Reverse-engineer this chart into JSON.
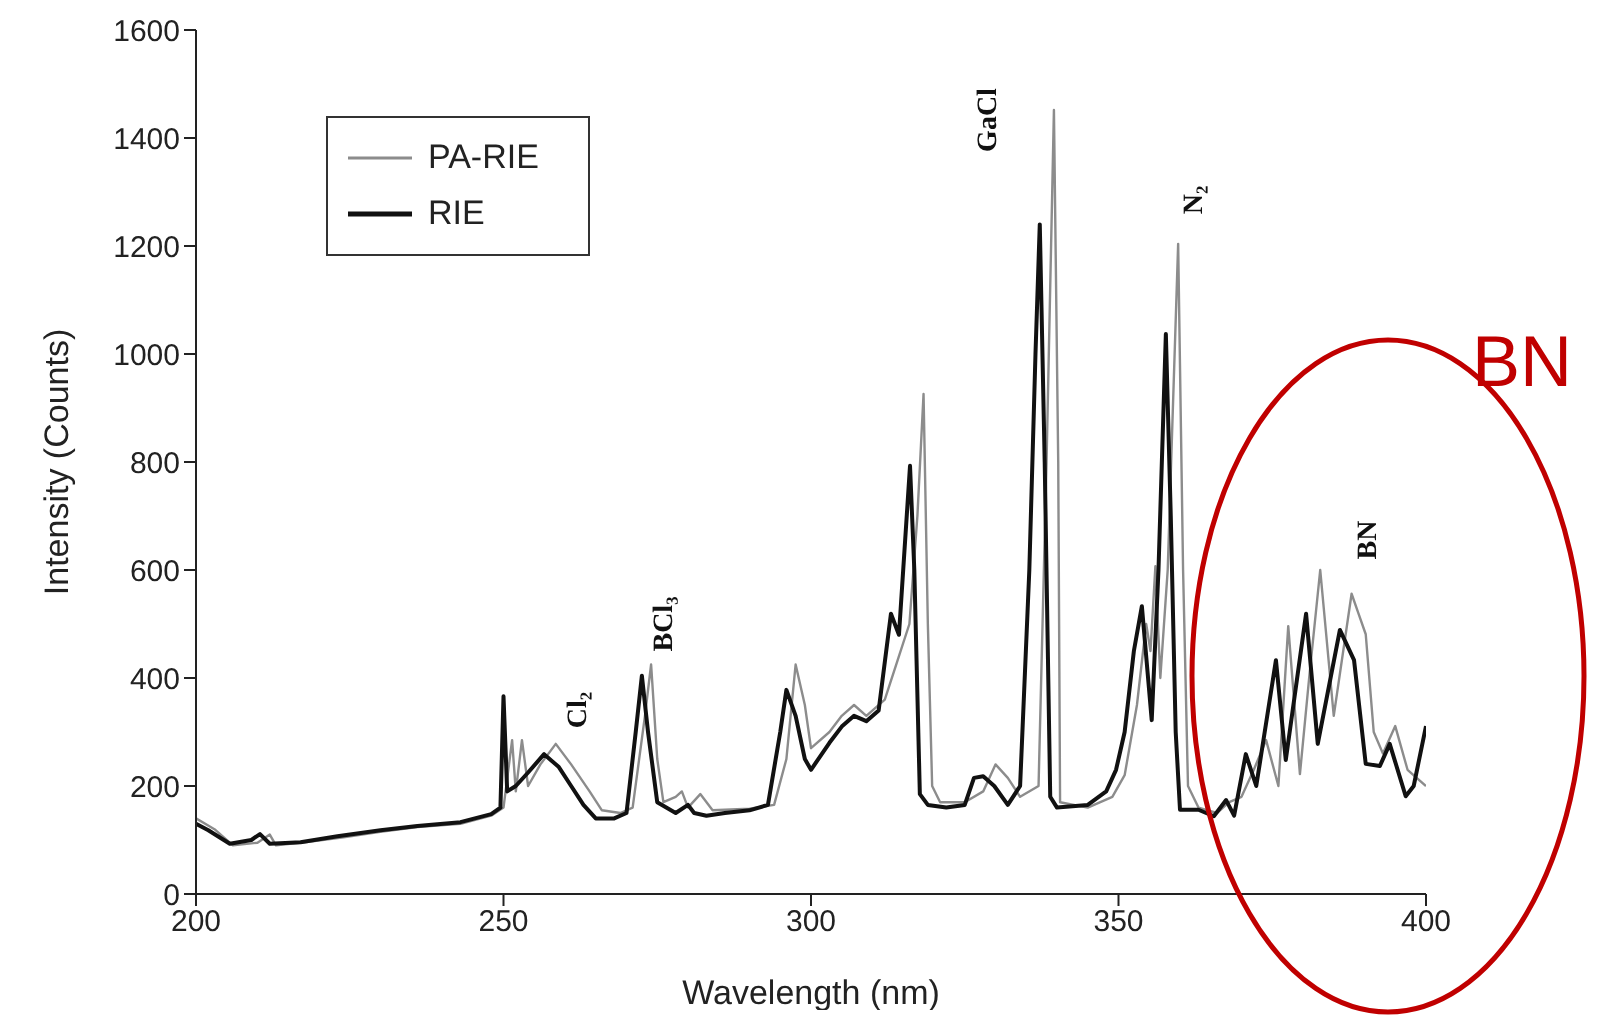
{
  "chart_data": {
    "type": "line",
    "xlabel": "Wavelength (nm)",
    "ylabel": "Intensity (Counts)",
    "xlim": [
      200,
      400
    ],
    "xticks": [
      200,
      250,
      300,
      350,
      400
    ],
    "ylim": [
      0,
      1600
    ],
    "yticks": [
      0,
      200,
      400,
      600,
      800,
      1000,
      1200,
      1400,
      1600
    ],
    "legend": "top left",
    "marker": "none",
    "line_style": "solid",
    "series": [
      {
        "name": "PA-RIE",
        "color": "#8c8c8c",
        "x": [
          200,
          203,
          206,
          210,
          212,
          213,
          218,
          224,
          230,
          236,
          243,
          248,
          250,
          251.4,
          252,
          253,
          254,
          256,
          258.5,
          261,
          264,
          266,
          269,
          271,
          273,
          274,
          275,
          276,
          278,
          279,
          280,
          282,
          284,
          290,
          294,
          296,
          297.5,
          299,
          300,
          303,
          305,
          307,
          309,
          312,
          314,
          316,
          317.3,
          318.3,
          319,
          319.7,
          321,
          325,
          328,
          330,
          332,
          334,
          337,
          338.3,
          339.5,
          340.2,
          340.5,
          345,
          349,
          351,
          353,
          354.5,
          355.2,
          356,
          356.8,
          358,
          359.7,
          360.5,
          361.3,
          363,
          366,
          368,
          370,
          372,
          374,
          376,
          377.6,
          379.5,
          381,
          382.8,
          385,
          387.9,
          389,
          390.2,
          391.5,
          393,
          395,
          397,
          400
        ],
        "values": [
          140,
          120,
          90,
          95,
          110,
          90,
          96,
          105,
          115,
          124,
          130,
          145,
          160,
          285,
          190,
          285,
          200,
          240,
          278,
          240,
          190,
          155,
          150,
          160,
          330,
          425,
          250,
          170,
          180,
          190,
          160,
          185,
          155,
          158,
          165,
          250,
          425,
          350,
          270,
          300,
          330,
          350,
          330,
          360,
          430,
          500,
          700,
          926,
          500,
          200,
          170,
          170,
          190,
          240,
          215,
          180,
          200,
          800,
          1452,
          800,
          170,
          160,
          180,
          220,
          350,
          500,
          450,
          607,
          400,
          600,
          1204,
          600,
          200,
          160,
          150,
          170,
          180,
          230,
          285,
          200,
          496,
          222,
          400,
          600,
          330,
          556,
          520,
          481,
          300,
          260,
          311,
          230,
          200
        ]
      },
      {
        "name": "RIE",
        "color": "#111111",
        "x": [
          200,
          202,
          205.5,
          209,
          210.4,
          212,
          217,
          223,
          230,
          236,
          243,
          248,
          249.5,
          250,
          250.6,
          252,
          254,
          256.6,
          259,
          261,
          263,
          265,
          268,
          270,
          271.5,
          272.5,
          273.5,
          275,
          278,
          280,
          281,
          283,
          286,
          290,
          293,
          295,
          296,
          297.5,
          299,
          300,
          303,
          305,
          307,
          309,
          311,
          313,
          314.3,
          316.1,
          316.8,
          317.7,
          319,
          322,
          325,
          326.5,
          328,
          329.8,
          332,
          334,
          335.5,
          336.5,
          337.2,
          338,
          338.9,
          340,
          345,
          348,
          349.6,
          351,
          352.5,
          353.8,
          355.4,
          356.5,
          357.7,
          358.5,
          359.3,
          360,
          363,
          365.5,
          367.5,
          368.8,
          370.7,
          372.4,
          375.6,
          377.2,
          380.5,
          382.4,
          386,
          388.3,
          390.2,
          392.5,
          394.1,
          396.7,
          398,
          400
        ],
        "values": [
          130,
          118,
          93,
          100,
          111,
          93,
          96,
          107,
          118,
          126,
          133,
          148,
          160,
          366,
          190,
          200,
          225,
          259,
          235,
          200,
          165,
          140,
          140,
          150,
          300,
          404,
          300,
          170,
          150,
          165,
          150,
          145,
          150,
          155,
          165,
          300,
          378,
          330,
          250,
          230,
          280,
          310,
          330,
          320,
          340,
          519,
          480,
          793,
          600,
          185,
          165,
          160,
          165,
          215,
          218,
          200,
          165,
          200,
          600,
          1000,
          1240,
          800,
          180,
          160,
          165,
          190,
          230,
          300,
          450,
          533,
          322,
          600,
          1037,
          700,
          300,
          156,
          156,
          144,
          174,
          145,
          259,
          200,
          433,
          248,
          519,
          278,
          489,
          433,
          241,
          237,
          278,
          181,
          200,
          311
        ]
      }
    ],
    "annotations": [
      "Cl₂",
      "BCl₃",
      "GaCl",
      "N₂",
      "BN",
      "BN"
    ]
  }
}
